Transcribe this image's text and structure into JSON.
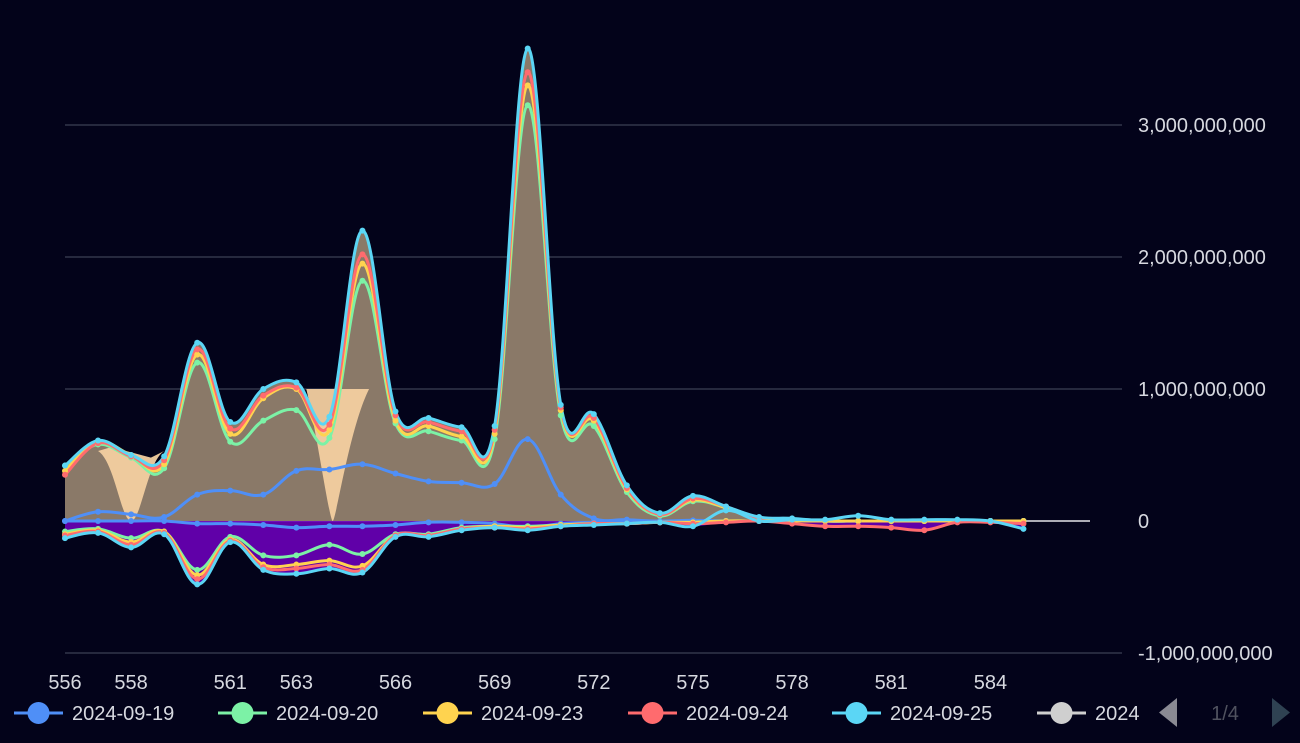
{
  "chart_data": {
    "type": "area",
    "x": [
      "556",
      "557",
      "558",
      "559",
      "560",
      "561",
      "562",
      "563",
      "564",
      "565",
      "566",
      "567",
      "568",
      "569",
      "570",
      "571",
      "572",
      "573",
      "574",
      "575",
      "576",
      "577",
      "578",
      "579",
      "580",
      "581",
      "582",
      "583",
      "584",
      "585"
    ],
    "x_tick_labels": [
      "556",
      "558",
      "561",
      "563",
      "566",
      "569",
      "572",
      "575",
      "578",
      "581",
      "584"
    ],
    "ylim": [
      -1000000000,
      4000000000
    ],
    "y_tick_labels": [
      "3,000,000,000",
      "2,000,000,000",
      "1,000,000,000",
      "0",
      "-1,000,000,000"
    ],
    "grid": true,
    "legend_position": "bottom",
    "pager": {
      "label": "1/4",
      "prev_icon": "triangle-left-icon",
      "next_icon": "triangle-right-icon"
    },
    "colors": {
      "background": "#03031a",
      "grid": "#4a4f63",
      "text": "#d7d9e0",
      "positive_fill": "#f3cfa0",
      "overlap_fill": "#8a7968",
      "negative_fill": "#6a00b8"
    },
    "series": [
      {
        "name": "2024-09-19",
        "color": "#4f8ff7",
        "values": [
          0,
          70000000,
          50000000,
          30000000,
          200000000,
          230000000,
          200000000,
          380000000,
          390000000,
          430000000,
          360000000,
          300000000,
          290000000,
          280000000,
          620000000,
          200000000,
          20000000,
          10000000,
          0,
          5000000,
          0,
          0,
          0,
          0,
          0,
          0,
          0,
          0,
          0,
          0
        ]
      },
      {
        "name": "2024-09-20",
        "color": "#7cf2a6",
        "values": [
          420000000,
          580000000,
          480000000,
          400000000,
          1200000000,
          600000000,
          760000000,
          840000000,
          630000000,
          1820000000,
          740000000,
          680000000,
          610000000,
          620000000,
          3150000000,
          800000000,
          720000000,
          220000000,
          40000000,
          150000000,
          100000000,
          10000000,
          10000000,
          0,
          0,
          0,
          0,
          0,
          0,
          0
        ]
      },
      {
        "name": "2024-09-23",
        "color": "#ffd34f",
        "values": [
          380000000,
          600000000,
          500000000,
          430000000,
          1260000000,
          660000000,
          930000000,
          1000000000,
          690000000,
          1950000000,
          760000000,
          720000000,
          640000000,
          660000000,
          3300000000,
          840000000,
          760000000,
          240000000,
          50000000,
          160000000,
          100000000,
          10000000,
          10000000,
          0,
          0,
          0,
          0,
          0,
          0,
          0
        ]
      },
      {
        "name": "2024-09-24",
        "color": "#ff6b6e",
        "values": [
          350000000,
          590000000,
          490000000,
          460000000,
          1300000000,
          700000000,
          950000000,
          1010000000,
          730000000,
          2020000000,
          800000000,
          750000000,
          680000000,
          690000000,
          3400000000,
          860000000,
          780000000,
          250000000,
          50000000,
          170000000,
          110000000,
          20000000,
          10000000,
          0,
          0,
          0,
          0,
          0,
          0,
          0
        ]
      },
      {
        "name": "2024-09-25",
        "color": "#5bd6f5",
        "values": [
          420000000,
          610000000,
          500000000,
          490000000,
          1350000000,
          750000000,
          1000000000,
          1050000000,
          790000000,
          2200000000,
          830000000,
          780000000,
          710000000,
          720000000,
          3580000000,
          880000000,
          810000000,
          270000000,
          60000000,
          190000000,
          110000000,
          30000000,
          20000000,
          0,
          0,
          0,
          0,
          0,
          0,
          0
        ]
      },
      {
        "name": "2024-09-19",
        "color": "#4f8ff7",
        "legend": false,
        "values": [
          0,
          0,
          0,
          0,
          -20000000,
          -20000000,
          -30000000,
          -50000000,
          -40000000,
          -40000000,
          -30000000,
          -10000000,
          -10000000,
          -20000000,
          -50000000,
          -20000000,
          -10000000,
          -10000000,
          -5000000,
          0,
          0,
          0,
          0,
          0,
          0,
          0,
          0,
          0,
          0,
          0
        ]
      },
      {
        "name": "2024-09-20",
        "color": "#7cf2a6",
        "legend": false,
        "values": [
          -80000000,
          -60000000,
          -130000000,
          -80000000,
          -370000000,
          -120000000,
          -260000000,
          -260000000,
          -180000000,
          -250000000,
          -100000000,
          -100000000,
          -50000000,
          -40000000,
          -40000000,
          -30000000,
          -20000000,
          -20000000,
          -10000000,
          -10000000,
          0,
          0,
          0,
          0,
          0,
          0,
          0,
          0,
          0,
          0
        ]
      },
      {
        "name": "2024-09-23",
        "color": "#ffd34f",
        "legend": false,
        "values": [
          -100000000,
          -70000000,
          -160000000,
          -80000000,
          -410000000,
          -140000000,
          -330000000,
          -330000000,
          -300000000,
          -340000000,
          -110000000,
          -110000000,
          -60000000,
          -40000000,
          -50000000,
          -30000000,
          -20000000,
          -20000000,
          -10000000,
          -10000000,
          0,
          0,
          0,
          0,
          0,
          0,
          0,
          0,
          0,
          0
        ]
      },
      {
        "name": "2024-09-24",
        "color": "#ff6b6e",
        "legend": false,
        "values": [
          -110000000,
          -80000000,
          -180000000,
          -90000000,
          -440000000,
          -150000000,
          -350000000,
          -360000000,
          -330000000,
          -370000000,
          -110000000,
          -110000000,
          -60000000,
          -50000000,
          -60000000,
          -40000000,
          -20000000,
          -20000000,
          -10000000,
          -20000000,
          -10000000,
          0,
          -20000000,
          -40000000,
          -40000000,
          -50000000,
          -70000000,
          -10000000,
          -10000000,
          -20000000
        ]
      },
      {
        "name": "2024-09-25",
        "color": "#5bd6f5",
        "legend": false,
        "values": [
          -130000000,
          -90000000,
          -200000000,
          -100000000,
          -480000000,
          -160000000,
          -370000000,
          -400000000,
          -360000000,
          -390000000,
          -120000000,
          -120000000,
          -70000000,
          -50000000,
          -70000000,
          -40000000,
          -30000000,
          -20000000,
          -10000000,
          -40000000,
          80000000,
          0,
          10000000,
          10000000,
          40000000,
          10000000,
          10000000,
          10000000,
          0,
          -60000000
        ]
      }
    ],
    "legend": [
      {
        "label": "2024-09-19",
        "color": "#4f8ff7"
      },
      {
        "label": "2024-09-20",
        "color": "#7cf2a6"
      },
      {
        "label": "2024-09-23",
        "color": "#ffd34f"
      },
      {
        "label": "2024-09-24",
        "color": "#ff6b6e"
      },
      {
        "label": "2024-09-25",
        "color": "#5bd6f5"
      },
      {
        "label": "2024",
        "color": "#cfcfcf"
      }
    ]
  }
}
